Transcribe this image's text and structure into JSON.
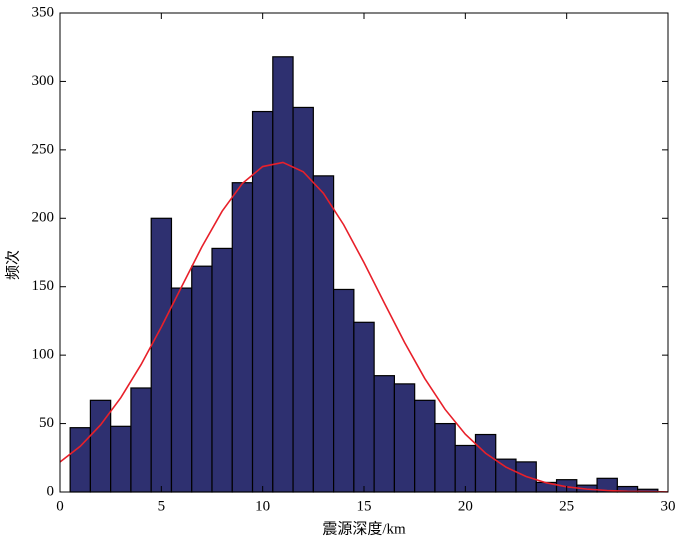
{
  "chart_data": {
    "type": "histogram",
    "xlabel": "震源深度/km",
    "ylabel": "频次",
    "bins": [
      0.5,
      1.5,
      2.5,
      3.5,
      4.5,
      5.5,
      6.5,
      7.5,
      8.5,
      9.5,
      10.5,
      11.5,
      12.5,
      13.5,
      14.5,
      15.5,
      16.5,
      17.5,
      18.5,
      19.5,
      20.5,
      21.5,
      22.5,
      23.5,
      24.5,
      25.5,
      26.5,
      27.5,
      28.5,
      29.5
    ],
    "values": [
      47,
      67,
      48,
      76,
      200,
      149,
      165,
      178,
      226,
      278,
      318,
      281,
      231,
      148,
      124,
      85,
      79,
      67,
      50,
      34,
      42,
      24,
      22,
      7,
      9,
      5,
      10,
      4,
      2
    ],
    "color": "#2e3070",
    "edgecolor": "#000000",
    "fit": {
      "color": "#e8202a",
      "x": [
        0,
        1,
        2,
        3,
        4,
        5,
        6,
        7,
        8,
        9,
        10,
        11,
        12,
        13,
        14,
        15,
        16,
        17,
        18,
        19,
        20,
        21,
        22,
        23,
        24,
        25,
        26,
        27,
        28,
        29,
        30
      ],
      "values": [
        21.9,
        33.4,
        49.0,
        68.9,
        93.1,
        120.6,
        150.0,
        179.1,
        205.2,
        225.5,
        237.8,
        240.8,
        234.0,
        218.2,
        195.2,
        167.6,
        138.2,
        109.3,
        82.9,
        60.4,
        42.2,
        28.3,
        18.2,
        11.3,
        6.7,
        3.8,
        2.1,
        1.1,
        0.5,
        0.3,
        0.1
      ]
    },
    "xlim": [
      0,
      30
    ],
    "ylim": [
      0,
      350
    ],
    "xticks": [
      0,
      5,
      10,
      15,
      20,
      25,
      30
    ],
    "yticks": [
      0,
      50,
      100,
      150,
      200,
      250,
      300,
      350
    ]
  }
}
